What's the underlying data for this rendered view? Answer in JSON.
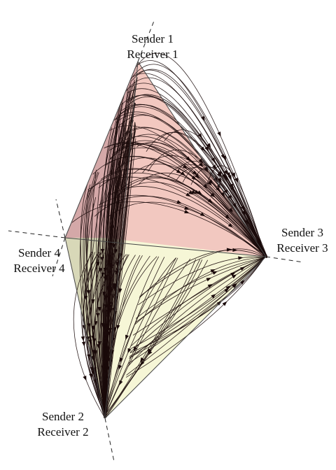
{
  "vertices": {
    "v1": {
      "sender": "Sender 1",
      "receiver": "Receiver 1"
    },
    "v2": {
      "sender": "Sender 2",
      "receiver": "Receiver 2"
    },
    "v3": {
      "sender": "Sender 3",
      "receiver": "Receiver 3"
    },
    "v4": {
      "sender": "Sender 4",
      "receiver": "Receiver 4"
    }
  },
  "colors": {
    "upper_face": "#f2c8c0",
    "upper_left_face": "#d4a8a8",
    "lower_face": "#f6f6d6",
    "lower_left_face": "#d8d8b8",
    "edge": "#444444",
    "flow": "#1a0a0a"
  }
}
